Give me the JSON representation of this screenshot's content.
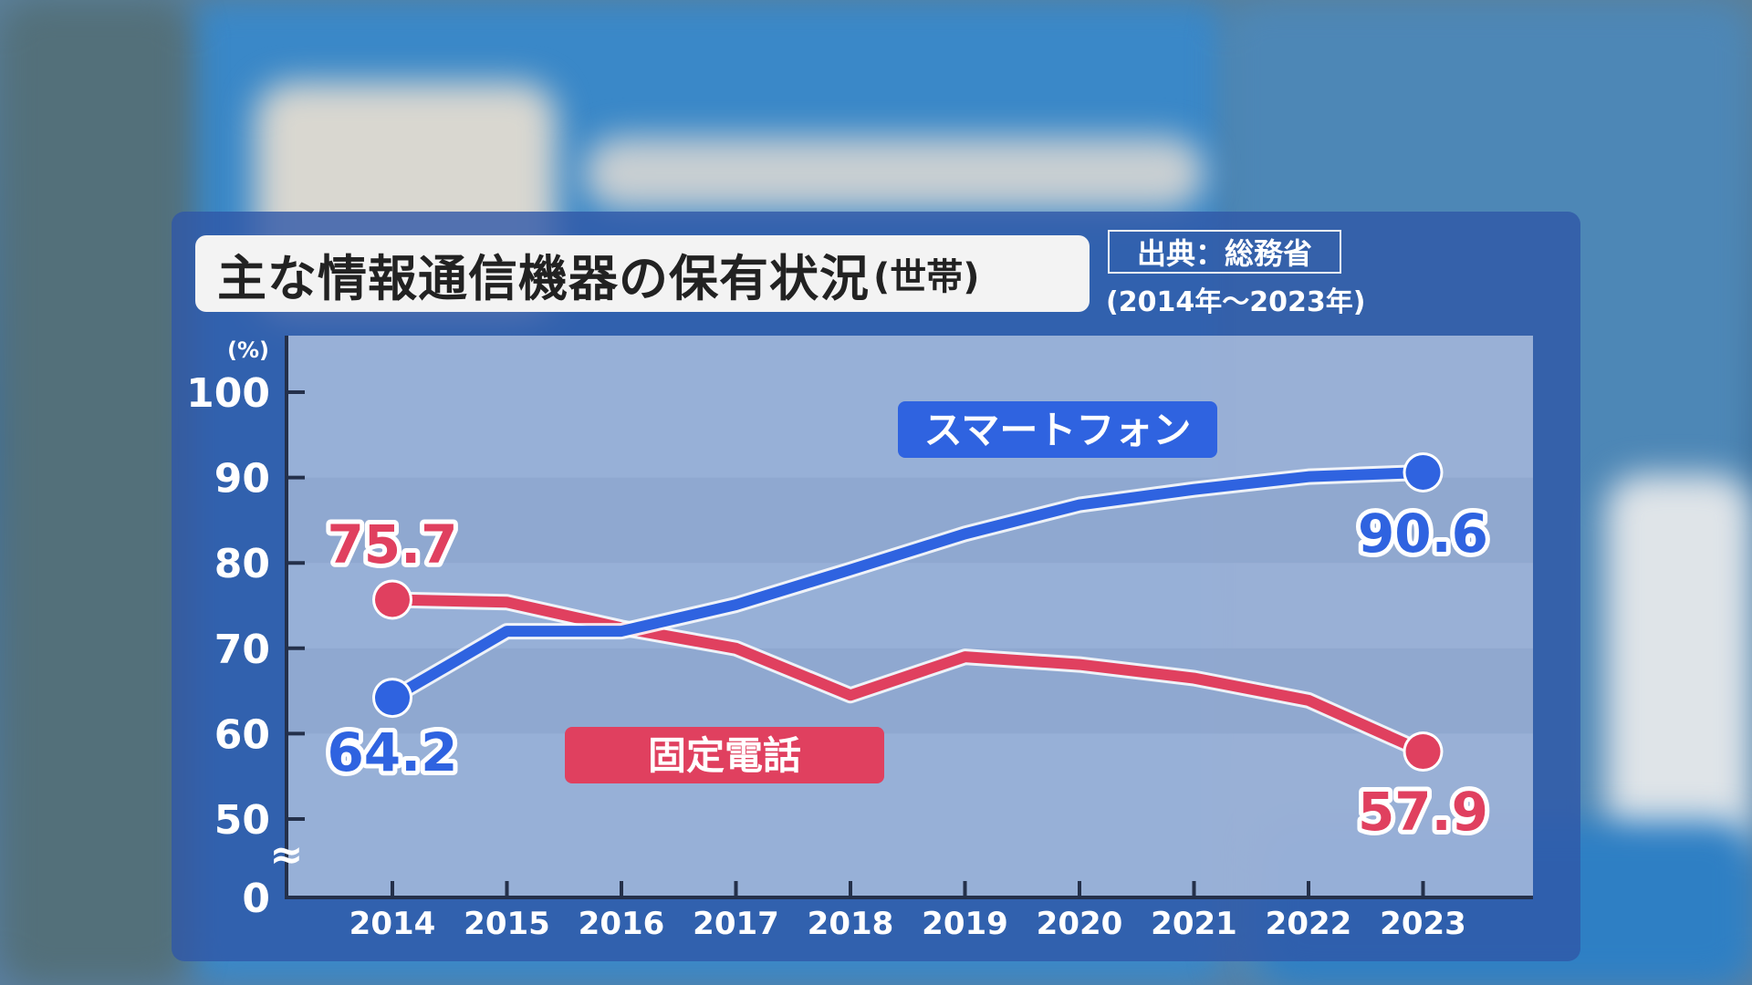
{
  "chart_title": "主な情報通信機器の保有状況",
  "chart_title_suffix": "(世帯)",
  "source_label": "出典：総務省",
  "period_label": "(2014年〜2023年)",
  "chart_data": {
    "type": "line",
    "ylabel": "(%)",
    "ylim": [
      0,
      100
    ],
    "axis_break": "≈",
    "yticks": [
      "100",
      "90",
      "80",
      "70",
      "60",
      "50",
      "0"
    ],
    "x": [
      "2014",
      "2015",
      "2016",
      "2017",
      "2018",
      "2019",
      "2020",
      "2021",
      "2022",
      "2023"
    ],
    "series": [
      {
        "name": "スマートフォン",
        "color": "#2f63e0",
        "values": [
          64.2,
          72.0,
          72.0,
          75.1,
          79.2,
          83.4,
          86.8,
          88.6,
          90.1,
          90.6
        ],
        "start_label": "64.2",
        "end_label": "90.6"
      },
      {
        "name": "固定電話",
        "color": "#e0405f",
        "values": [
          75.7,
          75.4,
          72.4,
          70.0,
          64.5,
          69.0,
          68.1,
          66.5,
          63.9,
          57.9
        ],
        "start_label": "75.7",
        "end_label": "57.9"
      }
    ],
    "grid": "horizontal bands",
    "legend": "inline labels"
  }
}
